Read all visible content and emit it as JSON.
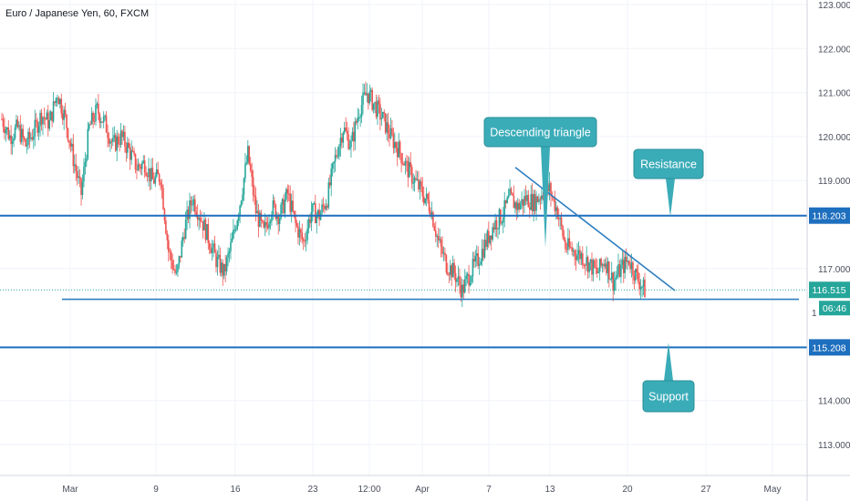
{
  "title": "Euro / Japanese Yen, 60, FXCM",
  "colors": {
    "up": "#26a69a",
    "down": "#ef5350",
    "level_line": "#1e6fbe",
    "trend_line": "#2f7fc1",
    "callout": "#3aacb8",
    "current_price": "#26a69a",
    "grid": "#f0f3fa"
  },
  "chart_data": {
    "type": "candlestick",
    "title": "Euro / Japanese Yen, 60, FXCM",
    "x_ticks": [
      "Mar",
      "9",
      "16",
      "23",
      "12:00",
      "Apr",
      "7",
      "13",
      "20",
      "27",
      "May"
    ],
    "y_ticks": [
      "123.000",
      "122.000",
      "121.000",
      "120.000",
      "119.000",
      "117.000",
      "114.000",
      "113.000"
    ],
    "y_range": [
      112.3,
      123.1
    ],
    "price_path": [
      [
        0,
        120.4
      ],
      [
        1,
        120.0
      ],
      [
        2,
        120.2
      ],
      [
        3,
        119.8
      ],
      [
        4,
        120.1
      ],
      [
        5,
        120.5
      ],
      [
        6,
        120.3
      ],
      [
        7,
        121.0
      ],
      [
        8,
        120.4
      ],
      [
        9,
        119.5
      ],
      [
        10,
        118.7
      ],
      [
        11,
        120.2
      ],
      [
        12,
        120.6
      ],
      [
        13,
        120.3
      ],
      [
        14,
        119.8
      ],
      [
        15,
        120.0
      ],
      [
        16,
        119.7
      ],
      [
        17,
        119.3
      ],
      [
        18,
        119.4
      ],
      [
        19,
        119.0
      ],
      [
        20,
        119.1
      ],
      [
        21,
        117.4
      ],
      [
        22,
        116.8
      ],
      [
        23,
        117.9
      ],
      [
        24,
        118.6
      ],
      [
        25,
        118.2
      ],
      [
        26,
        117.7
      ],
      [
        27,
        117.2
      ],
      [
        28,
        116.9
      ],
      [
        29,
        117.6
      ],
      [
        30,
        118.5
      ],
      [
        31,
        119.6
      ],
      [
        32,
        118.3
      ],
      [
        33,
        117.8
      ],
      [
        34,
        118.4
      ],
      [
        35,
        118.2
      ],
      [
        36,
        118.7
      ],
      [
        37,
        118.0
      ],
      [
        38,
        117.6
      ],
      [
        39,
        118.3
      ],
      [
        40,
        118.2
      ],
      [
        41,
        118.6
      ],
      [
        42,
        119.5
      ],
      [
        43,
        120.2
      ],
      [
        44,
        119.8
      ],
      [
        45,
        120.6
      ],
      [
        46,
        121.0
      ],
      [
        47,
        120.7
      ],
      [
        48,
        120.4
      ],
      [
        49,
        120.0
      ],
      [
        50,
        119.7
      ],
      [
        51,
        119.3
      ],
      [
        52,
        119.0
      ],
      [
        53,
        118.7
      ],
      [
        54,
        118.4
      ],
      [
        55,
        117.6
      ],
      [
        56,
        117.1
      ],
      [
        57,
        116.9
      ],
      [
        58,
        116.5
      ],
      [
        59,
        116.9
      ],
      [
        60,
        117.2
      ],
      [
        61,
        117.6
      ],
      [
        62,
        118.0
      ],
      [
        63,
        118.2
      ],
      [
        64,
        118.6
      ],
      [
        65,
        118.4
      ],
      [
        66,
        118.6
      ],
      [
        67,
        118.5
      ],
      [
        68,
        118.7
      ],
      [
        69,
        118.8
      ],
      [
        70,
        118.3
      ],
      [
        71,
        117.5
      ],
      [
        72,
        117.4
      ],
      [
        73,
        117.3
      ],
      [
        74,
        117.1
      ],
      [
        75,
        116.9
      ],
      [
        76,
        117.2
      ],
      [
        77,
        116.7
      ],
      [
        78,
        117.0
      ],
      [
        79,
        117.2
      ],
      [
        80,
        116.8
      ],
      [
        81,
        116.5
      ]
    ],
    "horizontal_levels": [
      {
        "name": "Resistance",
        "value": 118.203,
        "label": "118.203"
      },
      {
        "name": "Support",
        "value": 115.208,
        "label": "115.208"
      }
    ],
    "support_line_value": 116.3,
    "trend_line": {
      "start_value": 119.3,
      "end_value": 116.5
    },
    "current_price": {
      "value": 116.515,
      "label": "116.515",
      "countdown": "06:46"
    },
    "annotations": [
      "Descending triangle",
      "Resistance",
      "Support"
    ]
  }
}
